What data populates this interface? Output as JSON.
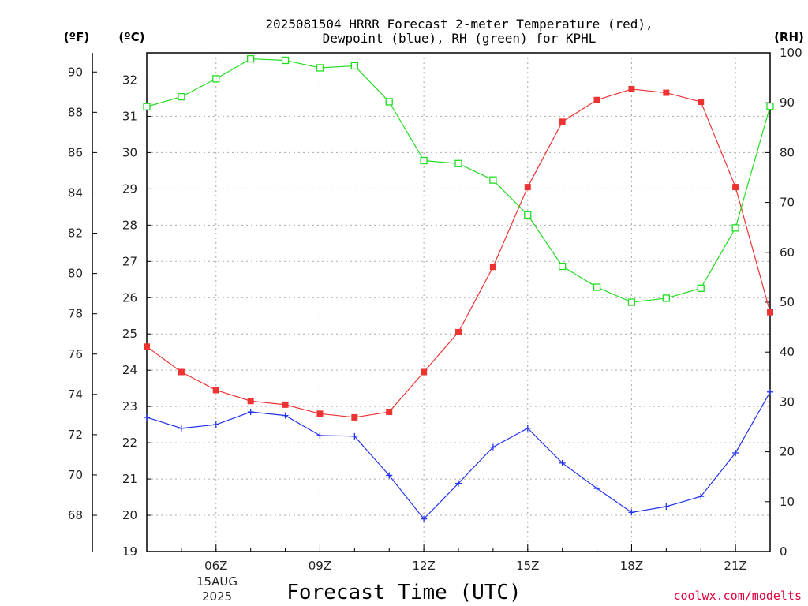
{
  "chart_data": {
    "type": "line",
    "title_line1": "2025081504 HRRR Forecast 2-meter Temperature (red),",
    "title_line2": "Dewpoint (blue), RH (green) for KPHL",
    "xlabel": "Forecast Time (UTC)",
    "credit": "coolwx.com/modelts",
    "units": {
      "f": "(ºF)",
      "c": "(ºC)",
      "rh": "(RH)"
    },
    "date_label": {
      "day": "15AUG",
      "year": "2025"
    },
    "x_hours": [
      4,
      5,
      6,
      7,
      8,
      9,
      10,
      11,
      12,
      13,
      14,
      15,
      16,
      17,
      18,
      19,
      20,
      21,
      22
    ],
    "x_range": [
      4,
      22
    ],
    "x_ticks": [
      {
        "hour": 6,
        "label": "06Z"
      },
      {
        "hour": 9,
        "label": "09Z"
      },
      {
        "hour": 12,
        "label": "12Z"
      },
      {
        "hour": 15,
        "label": "15Z"
      },
      {
        "hour": 18,
        "label": "18Z"
      },
      {
        "hour": 21,
        "label": "21Z"
      }
    ],
    "c_axis": {
      "range": [
        19,
        32.75
      ],
      "ticks": [
        19,
        20,
        21,
        22,
        23,
        24,
        25,
        26,
        27,
        28,
        29,
        30,
        31,
        32
      ]
    },
    "f_axis": {
      "ticks": [
        68,
        70,
        72,
        74,
        76,
        78,
        80,
        82,
        84,
        86,
        88,
        90
      ]
    },
    "rh_axis": {
      "range": [
        0,
        100
      ],
      "ticks": [
        0,
        10,
        20,
        30,
        40,
        50,
        60,
        70,
        80,
        90,
        100
      ]
    },
    "grid": true,
    "series": [
      {
        "name": "Temperature (red)",
        "axis": "c",
        "color": "#ee3333",
        "marker": "filled-square",
        "values": [
          24.65,
          23.95,
          23.45,
          23.15,
          23.05,
          22.8,
          22.7,
          22.85,
          23.95,
          25.05,
          26.85,
          29.05,
          30.85,
          31.45,
          31.75,
          31.65,
          31.4,
          29.05,
          25.6
        ]
      },
      {
        "name": "Dewpoint (blue)",
        "axis": "c",
        "color": "#2233ee",
        "marker": "plus",
        "values": [
          22.7,
          22.4,
          22.5,
          22.85,
          22.75,
          22.2,
          22.18,
          21.1,
          19.9,
          20.88,
          21.88,
          22.4,
          21.44,
          20.74,
          20.08,
          20.24,
          20.52,
          21.72,
          23.4
        ]
      },
      {
        "name": "RH (green)",
        "axis": "rh",
        "color": "#22dd22",
        "marker": "open-square",
        "values": [
          89.2,
          91.2,
          94.8,
          98.8,
          98.5,
          97.0,
          97.4,
          90.2,
          78.4,
          77.8,
          74.5,
          67.5,
          57.2,
          53.0,
          50.0,
          50.8,
          52.8,
          64.9,
          89.3
        ]
      }
    ]
  }
}
